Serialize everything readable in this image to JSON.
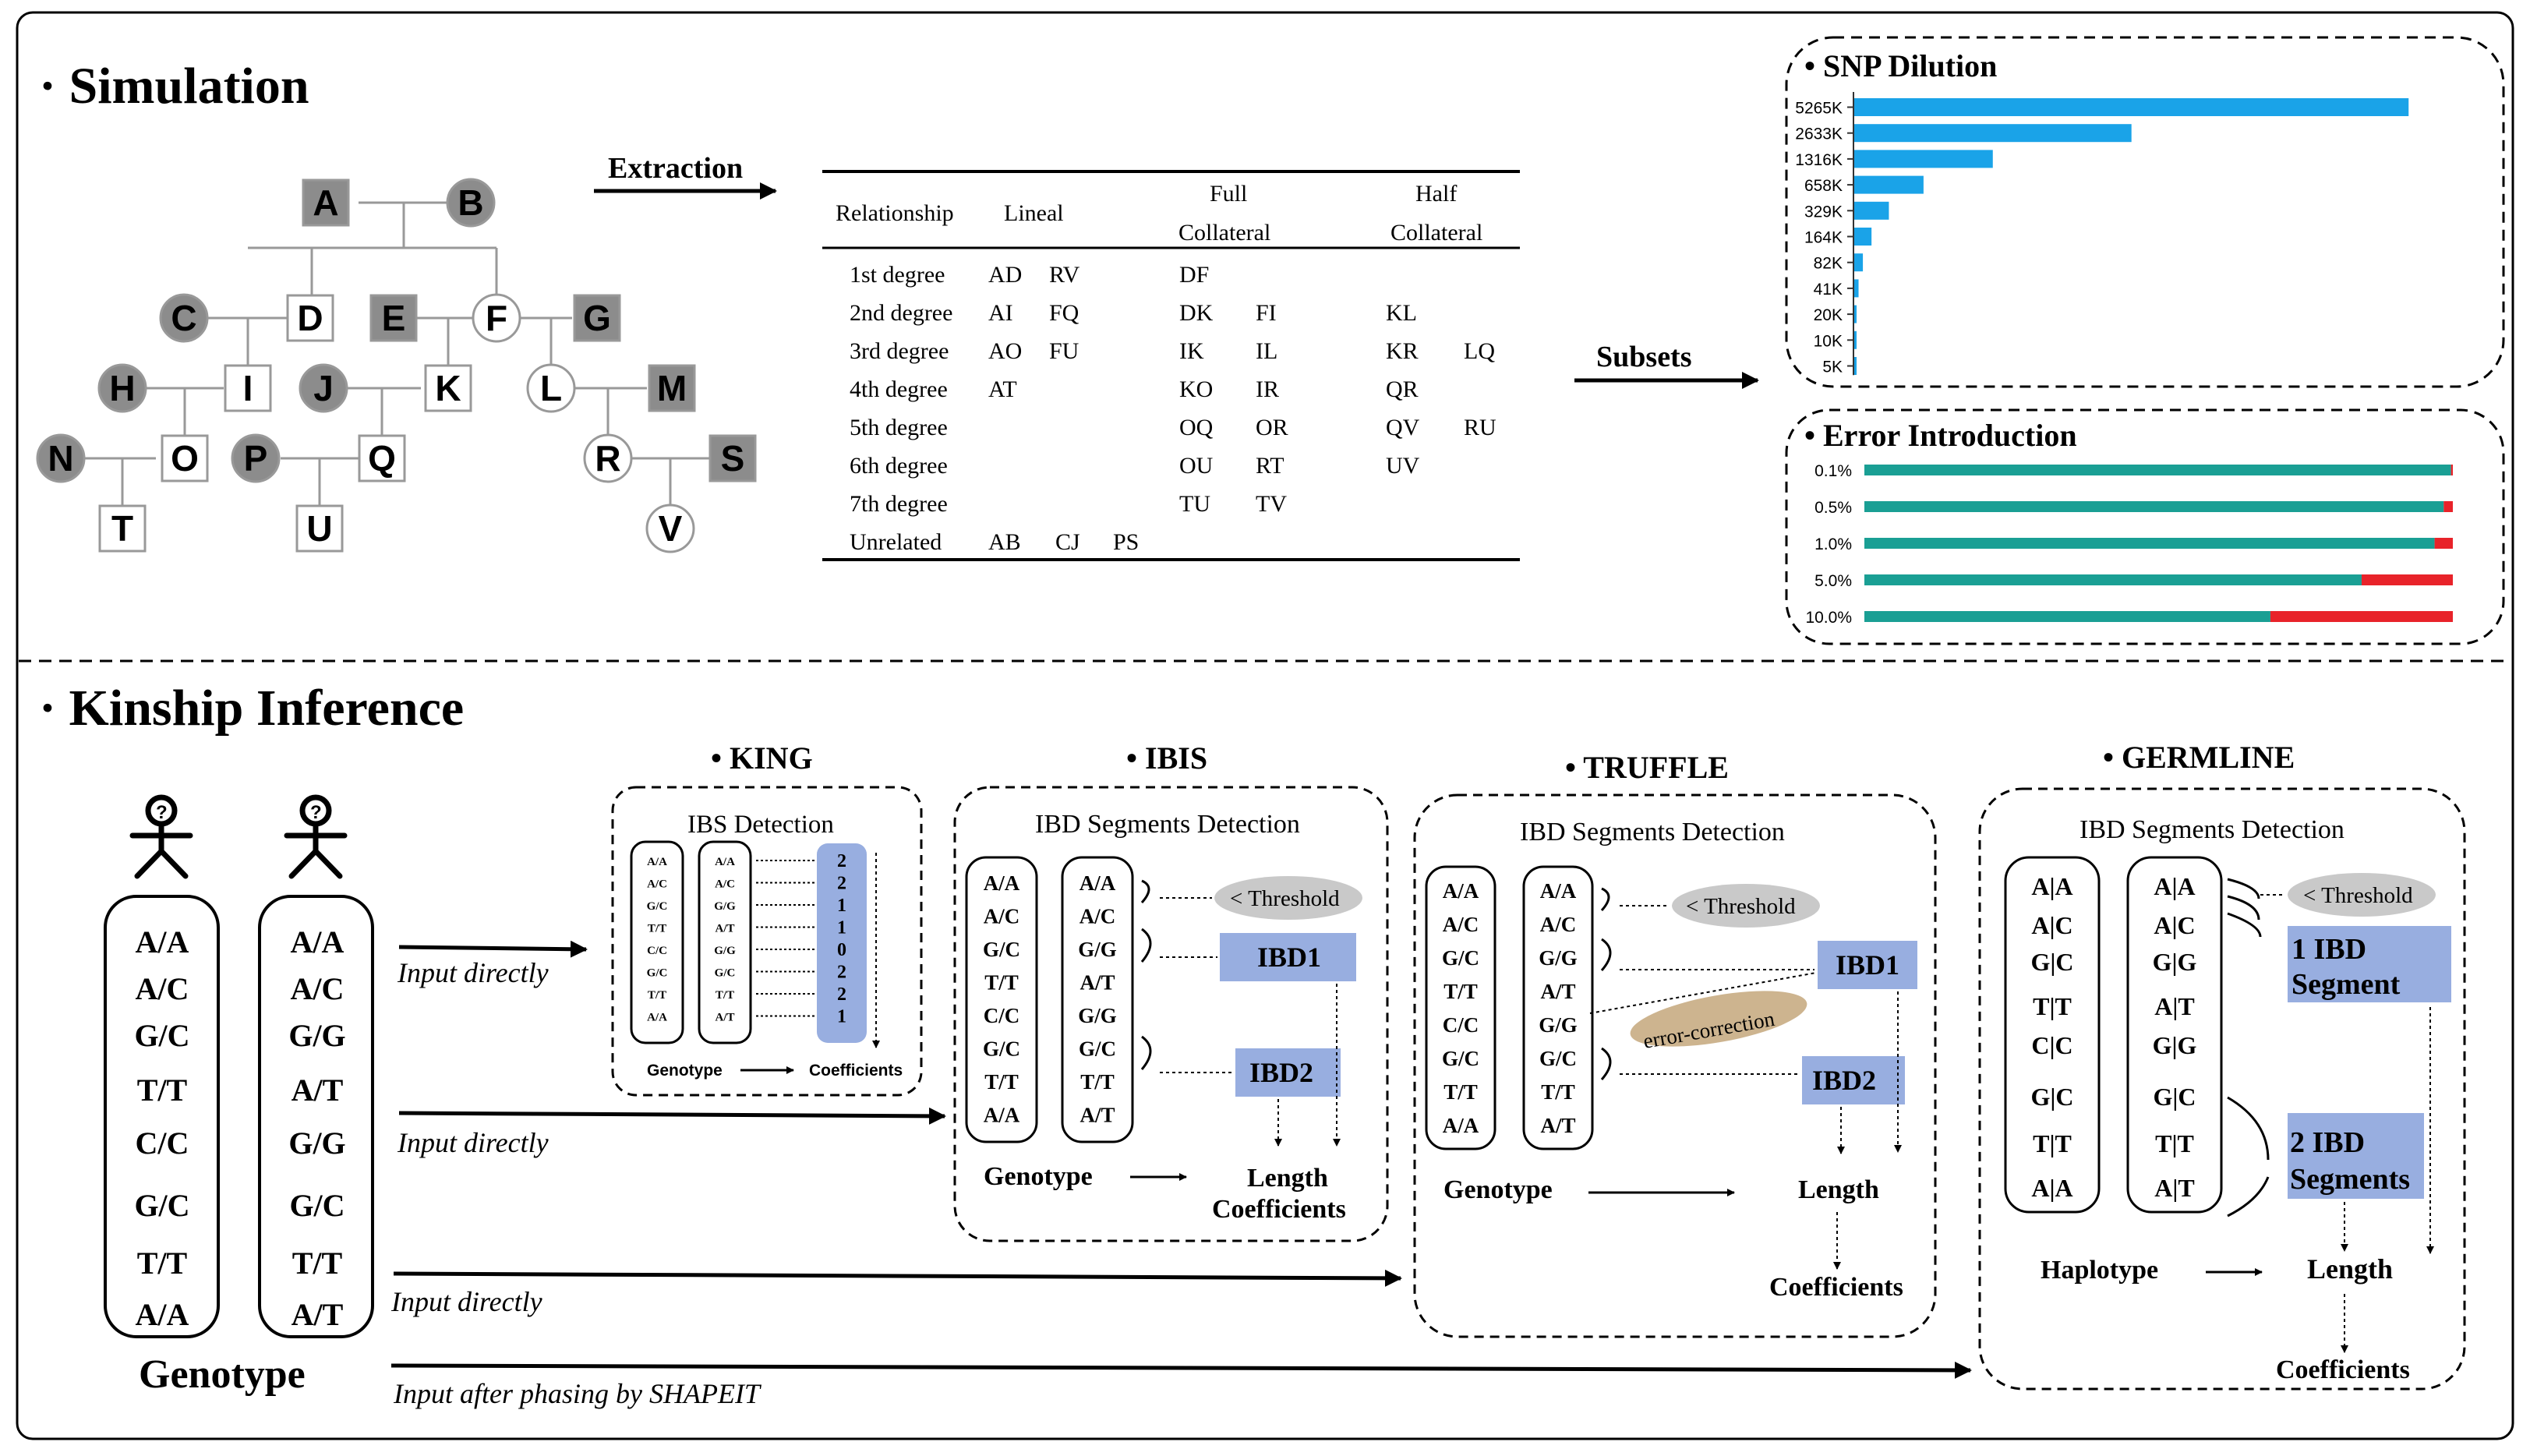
{
  "section_simulation": {
    "title": "Simulation"
  },
  "section_kinship": {
    "title": "Kinship Inference"
  },
  "pedigree": {
    "nodes": [
      {
        "id": "A",
        "label": "A",
        "sex": "male",
        "shade": "affected"
      },
      {
        "id": "B",
        "label": "B",
        "sex": "female",
        "shade": "affected"
      },
      {
        "id": "C",
        "label": "C",
        "sex": "female",
        "shade": "affected"
      },
      {
        "id": "D",
        "label": "D",
        "sex": "male",
        "shade": "none"
      },
      {
        "id": "E",
        "label": "E",
        "sex": "male",
        "shade": "affected"
      },
      {
        "id": "F",
        "label": "F",
        "sex": "female",
        "shade": "none"
      },
      {
        "id": "G",
        "label": "G",
        "sex": "male",
        "shade": "affected"
      },
      {
        "id": "H",
        "label": "H",
        "sex": "female",
        "shade": "affected"
      },
      {
        "id": "I",
        "label": "I",
        "sex": "male",
        "shade": "none"
      },
      {
        "id": "J",
        "label": "J",
        "sex": "female",
        "shade": "affected"
      },
      {
        "id": "K",
        "label": "K",
        "sex": "male",
        "shade": "none"
      },
      {
        "id": "L",
        "label": "L",
        "sex": "female",
        "shade": "none"
      },
      {
        "id": "M",
        "label": "M",
        "sex": "male",
        "shade": "affected"
      },
      {
        "id": "N",
        "label": "N",
        "sex": "female",
        "shade": "affected"
      },
      {
        "id": "O",
        "label": "O",
        "sex": "male",
        "shade": "none"
      },
      {
        "id": "P",
        "label": "P",
        "sex": "female",
        "shade": "affected"
      },
      {
        "id": "Q",
        "label": "Q",
        "sex": "male",
        "shade": "none"
      },
      {
        "id": "R",
        "label": "R",
        "sex": "female",
        "shade": "none"
      },
      {
        "id": "S",
        "label": "S",
        "sex": "male",
        "shade": "affected"
      },
      {
        "id": "T",
        "label": "T",
        "sex": "male",
        "shade": "none"
      },
      {
        "id": "U",
        "label": "U",
        "sex": "male",
        "shade": "none"
      },
      {
        "id": "V",
        "label": "V",
        "sex": "female",
        "shade": "none"
      }
    ]
  },
  "arrows": {
    "extraction": "Extraction",
    "subsets": "Subsets",
    "input1": "Input directly",
    "input2": "Input directly",
    "input3": "Input directly",
    "input4": "Input after phasing by SHAPEIT"
  },
  "rel_table": {
    "headers": {
      "relationship": "Relationship",
      "lineal": "Lineal",
      "full_1": "Full",
      "full_2": "Collateral",
      "half_1": "Half",
      "half_2": "Collateral"
    },
    "rows": [
      {
        "degree": "1st degree",
        "lineal": [
          "AD",
          "RV"
        ],
        "full": [
          "DF",
          ""
        ],
        "half": [
          "",
          ""
        ]
      },
      {
        "degree": "2nd degree",
        "lineal": [
          "AI",
          "FQ"
        ],
        "full": [
          "DK",
          "FI"
        ],
        "half": [
          "KL",
          ""
        ]
      },
      {
        "degree": "3rd degree",
        "lineal": [
          "AO",
          "FU"
        ],
        "full": [
          "IK",
          "IL"
        ],
        "half": [
          "KR",
          "LQ"
        ]
      },
      {
        "degree": "4th degree",
        "lineal": [
          "AT",
          ""
        ],
        "full": [
          "KO",
          "IR"
        ],
        "half": [
          "QR",
          ""
        ]
      },
      {
        "degree": "5th degree",
        "lineal": [
          "",
          ""
        ],
        "full": [
          "OQ",
          "OR"
        ],
        "half": [
          "QV",
          "RU"
        ]
      },
      {
        "degree": "6th degree",
        "lineal": [
          "",
          ""
        ],
        "full": [
          "OU",
          "RT"
        ],
        "half": [
          "UV",
          ""
        ]
      },
      {
        "degree": "7th degree",
        "lineal": [
          "",
          ""
        ],
        "full": [
          "TU",
          "TV"
        ],
        "half": [
          "",
          ""
        ]
      }
    ],
    "unrelated": {
      "label": "Unrelated",
      "pairs": [
        "AB",
        "CJ",
        "PS"
      ]
    }
  },
  "chart_data": [
    {
      "type": "bar",
      "orientation": "horizontal",
      "title": "• SNP Dilution",
      "categories": [
        "5265K",
        "2633K",
        "1316K",
        "658K",
        "329K",
        "164K",
        "82K",
        "41K",
        "20K",
        "10K",
        "5K"
      ],
      "values": [
        5265,
        2633,
        1316,
        658,
        329,
        164,
        82,
        41,
        20,
        10,
        5
      ],
      "xlim": [
        0,
        5700
      ],
      "color": "#1aa3e8"
    },
    {
      "type": "bar",
      "orientation": "horizontal",
      "stacked": true,
      "title": "• Error Introduction",
      "categories": [
        "0.1%",
        "0.5%",
        "1.0%",
        "5.0%",
        "10.0%"
      ],
      "series": [
        {
          "name": "correct",
          "color": "#1a9f94",
          "values": [
            99.9,
            99.5,
            99.0,
            95.0,
            90.0
          ]
        },
        {
          "name": "error",
          "color": "#e8232a",
          "values": [
            0.1,
            0.5,
            1.0,
            5.0,
            10.0
          ]
        }
      ],
      "error_scale": "error segment drawn at visually amplified length",
      "xlim": [
        0,
        100
      ]
    }
  ],
  "persons": {
    "left": [
      "A/A",
      "A/C",
      "G/C",
      "T/T",
      "C/C",
      "G/C",
      "T/T",
      "A/A"
    ],
    "right": [
      "A/A",
      "A/C",
      "G/G",
      "A/T",
      "G/G",
      "G/C",
      "T/T",
      "A/T"
    ],
    "caption": "Genotype"
  },
  "king": {
    "title": "• KING",
    "subtitle": "IBS Detection",
    "left": [
      "A/A",
      "A/C",
      "G/C",
      "T/T",
      "C/C",
      "G/C",
      "T/T",
      "A/A"
    ],
    "right": [
      "A/A",
      "A/C",
      "G/G",
      "A/T",
      "G/G",
      "G/C",
      "T/T",
      "A/T"
    ],
    "ibs": [
      "2",
      "2",
      "1",
      "1",
      "0",
      "2",
      "2",
      "1"
    ],
    "flow_from": "Genotype",
    "flow_to": "Coefficients"
  },
  "ibis": {
    "title": "• IBIS",
    "subtitle": "IBD Segments Detection",
    "left": [
      "A/A",
      "A/C",
      "G/C",
      "T/T",
      "C/C",
      "G/C",
      "T/T",
      "A/A"
    ],
    "right": [
      "A/A",
      "A/C",
      "G/G",
      "A/T",
      "G/G",
      "G/C",
      "T/T",
      "A/T"
    ],
    "threshold": "< Threshold",
    "ibd1": "IBD1",
    "ibd2": "IBD2",
    "flow_from": "Genotype",
    "out_1": "Length",
    "out_2": "Coefficients"
  },
  "truffle": {
    "title": "• TRUFFLE",
    "subtitle": "IBD Segments Detection",
    "left": [
      "A/A",
      "A/C",
      "G/C",
      "T/T",
      "C/C",
      "G/C",
      "T/T",
      "A/A"
    ],
    "right": [
      "A/A",
      "A/C",
      "G/G",
      "A/T",
      "G/G",
      "G/C",
      "T/T",
      "A/T"
    ],
    "threshold": "< Threshold",
    "error_correction": "error-correction",
    "ibd1": "IBD1",
    "ibd2": "IBD2",
    "flow_from": "Genotype",
    "out_1": "Length",
    "out_2": "Coefficients"
  },
  "germline": {
    "title": "• GERMLINE",
    "subtitle": "IBD Segments Detection",
    "left": [
      "A|A",
      "A|C",
      "G|C",
      "T|T",
      "C|C",
      "G|C",
      "T|T",
      "A|A"
    ],
    "right": [
      "A|A",
      "A|C",
      "G|G",
      "A|T",
      "G|G",
      "G|C",
      "T|T",
      "A|T"
    ],
    "threshold": "< Threshold",
    "seg1_a": "1 IBD",
    "seg1_b": "Segment",
    "seg2_a": "2 IBD",
    "seg2_b": "Segments",
    "flow_from": "Haplotype",
    "out_1": "Length",
    "out_2": "Coefficients"
  },
  "colors": {
    "node_fill": "#8c8c8c",
    "node_stroke": "#999999",
    "ibs_column": "#98aee0",
    "ibd_box": "#98aee0",
    "threshold_fill": "#c9c9c9",
    "error_corr_fill": "#cdb48f",
    "snp_bar": "#1aa3e8",
    "err_green": "#1a9f94",
    "err_red": "#e8232a"
  }
}
